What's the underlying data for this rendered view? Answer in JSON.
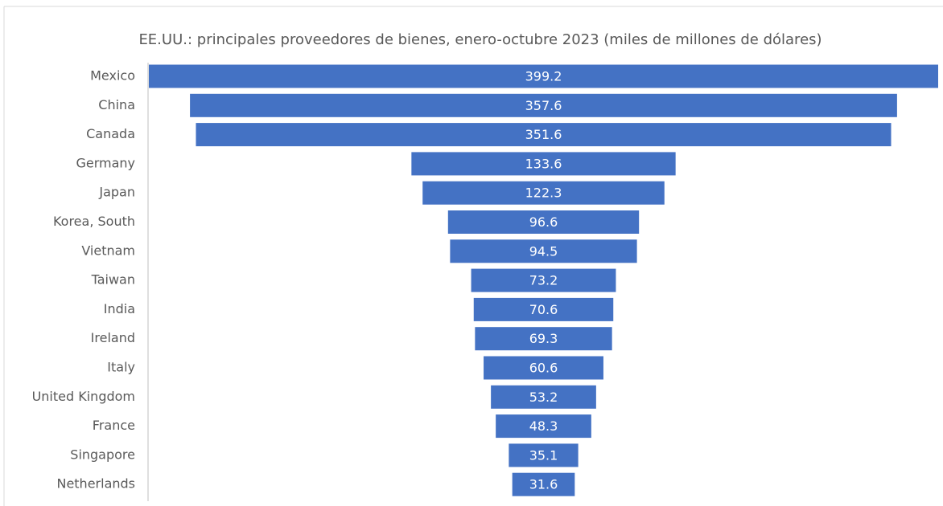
{
  "chart_data": {
    "type": "funnel",
    "title": "EE.UU.: principales proveedores de bienes, enero-octubre 2023 (miles de millones de dólares)",
    "categories": [
      "Mexico",
      "China",
      "Canada",
      "Germany",
      "Japan",
      "Korea, South",
      "Vietnam",
      "Taiwan",
      "India",
      "Ireland",
      "Italy",
      "United Kingdom",
      "France",
      "Singapore",
      "Netherlands"
    ],
    "values": [
      399.2,
      357.6,
      351.6,
      133.6,
      122.3,
      96.6,
      94.5,
      73.2,
      70.6,
      69.3,
      60.6,
      53.2,
      48.3,
      35.1,
      31.6
    ],
    "color": "#4472c4"
  }
}
